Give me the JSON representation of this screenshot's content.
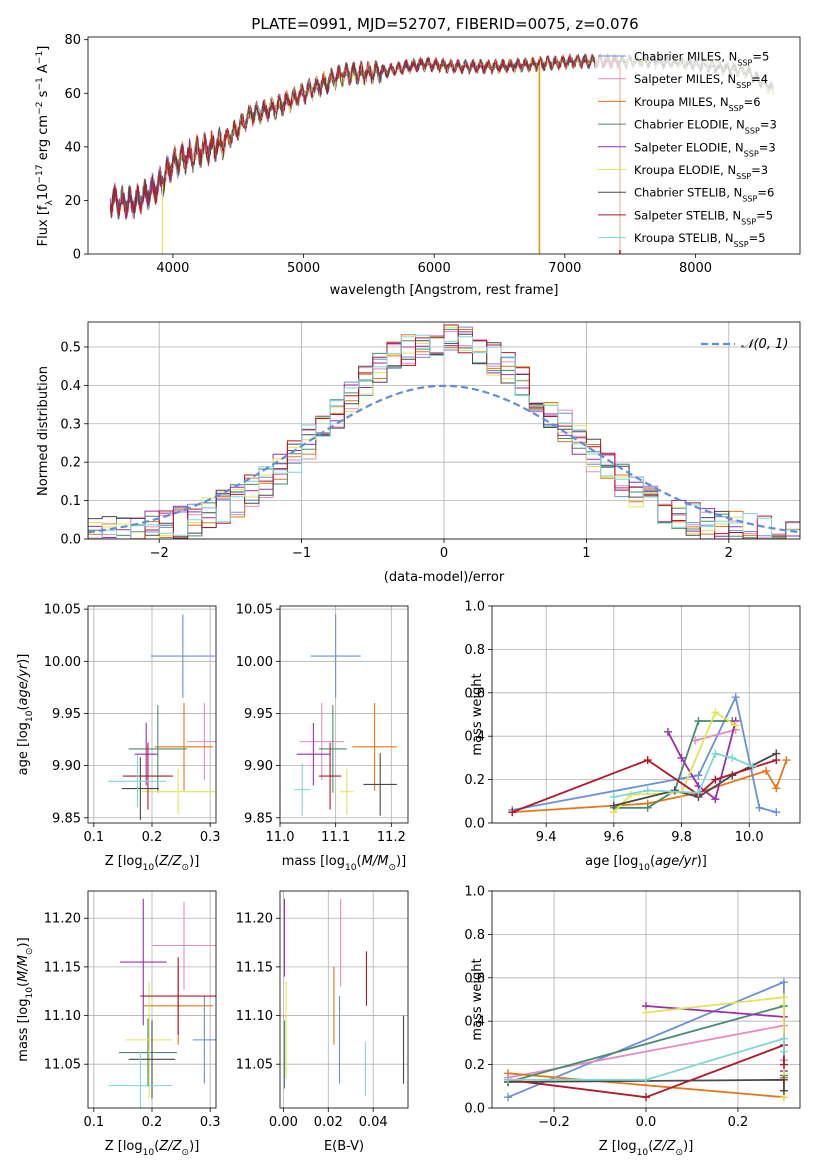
{
  "colors": [
    "#6a8fdb",
    "#e78ac3",
    "#e6761c",
    "#4a8a6e",
    "#9b2fae",
    "#e3e35a",
    "#484848",
    "#b2182b",
    "#7fd6d6"
  ],
  "series_names": [
    "Chabrier MILES",
    "Salpeter MILES",
    "Kroupa MILES",
    "Chabrier ELODIE",
    "Salpeter ELODIE",
    "Kroupa ELODIE",
    "Chabrier STELIB",
    "Salpeter STELIB",
    "Kroupa STELIB"
  ],
  "chart_data": [
    {
      "id": "spectrum",
      "type": "line",
      "title": "PLATE=0991, MJD=52707, FIBERID=0075, z=0.076",
      "xlabel": "wavelength [Angstrom, rest frame]",
      "ylabel": "Flux [f_λ 10^-17 erg cm^-2 s^-1 A^-1]",
      "xlim": [
        3350,
        8800
      ],
      "ylim": [
        0,
        81
      ],
      "xticks": [
        "4000",
        "5000",
        "6000",
        "7000",
        "8000"
      ],
      "yticks": [
        "0",
        "20",
        "40",
        "60",
        "80"
      ],
      "grid": false,
      "legend_position": "top-right",
      "legend": [
        "Chabrier MILES, N_SSP=5",
        "Salpeter MILES, N_SSP=4",
        "Kroupa MILES, N_SSP=6",
        "Chabrier ELODIE, N_SSP=3",
        "Salpeter ELODIE, N_SSP=3",
        "Kroupa ELODIE, N_SSP=3",
        "Chabrier STELIB, N_SSP=6",
        "Salpeter STELIB, N_SSP=5",
        "Kroupa STELIB, N_SSP=5"
      ],
      "continuum": [
        [
          3520,
          20
        ],
        [
          3700,
          19
        ],
        [
          3900,
          26
        ],
        [
          4000,
          34
        ],
        [
          4200,
          38
        ],
        [
          4400,
          42
        ],
        [
          4600,
          52
        ],
        [
          4800,
          55
        ],
        [
          5000,
          60
        ],
        [
          5300,
          67
        ],
        [
          5600,
          68
        ],
        [
          5900,
          71
        ],
        [
          6200,
          70
        ],
        [
          6500,
          70
        ],
        [
          6800,
          71
        ],
        [
          7100,
          72
        ],
        [
          7400,
          72
        ],
        [
          7700,
          72
        ],
        [
          8000,
          71
        ],
        [
          8400,
          68
        ],
        [
          8600,
          61
        ]
      ],
      "ranges": [
        [
          3520,
          8600
        ],
        [
          3520,
          7420
        ],
        [
          3520,
          7420
        ],
        [
          3520,
          8600
        ],
        [
          3520,
          8600
        ],
        [
          3920,
          8600
        ],
        [
          3520,
          8600
        ],
        [
          3520,
          7420
        ],
        [
          3520,
          8600
        ]
      ],
      "dropouts": [
        6800,
        7420,
        3920
      ]
    },
    {
      "id": "residuals",
      "type": "line",
      "xlabel": "(data-model)/error",
      "ylabel": "Normed distribution",
      "xlim": [
        -2.5,
        2.5
      ],
      "ylim": [
        0,
        0.565
      ],
      "xticks": [
        "-2",
        "-1",
        "0",
        "1",
        "2"
      ],
      "yticks": [
        "0.0",
        "0.1",
        "0.2",
        "0.3",
        "0.4",
        "0.5"
      ],
      "grid": true,
      "legend_position": "top-right",
      "legend": [
        "𝒩(0, 1)"
      ]
    },
    {
      "id": "z-age",
      "type": "scatter",
      "xlabel": "Z [log10(Z/Z⊙)]",
      "ylabel": "age [log10(age/yr)]",
      "xlim": [
        0.09,
        0.31
      ],
      "ylim": [
        9.845,
        10.053
      ],
      "xticks": [
        "0.1",
        "0.2",
        "0.3"
      ],
      "yticks": [
        "9.85",
        "9.90",
        "9.95",
        "10.00",
        "10.05"
      ],
      "grid": true,
      "points": [
        [
          0.253,
          10.005
        ],
        [
          0.29,
          9.923
        ],
        [
          0.255,
          9.918
        ],
        [
          0.21,
          9.916
        ],
        [
          0.19,
          9.911
        ],
        [
          0.245,
          9.875
        ],
        [
          0.18,
          9.878
        ],
        [
          0.193,
          9.89
        ],
        [
          0.175,
          9.885
        ]
      ]
    },
    {
      "id": "mass-age",
      "type": "scatter",
      "xlabel": "mass [log10(M/M⊙)]",
      "ylabel": "",
      "xlim": [
        11.0,
        11.23
      ],
      "ylim": [
        9.845,
        10.053
      ],
      "xticks": [
        "11.0",
        "11.1",
        "11.2"
      ],
      "yticks": [
        "9.85",
        "9.90",
        "9.95",
        "10.00",
        "10.05"
      ],
      "grid": true,
      "points": [
        [
          11.1,
          10.005
        ],
        [
          11.075,
          9.923
        ],
        [
          11.17,
          9.918
        ],
        [
          11.095,
          9.916
        ],
        [
          11.06,
          9.911
        ],
        [
          11.12,
          9.875
        ],
        [
          11.18,
          9.882
        ],
        [
          11.09,
          9.89
        ],
        [
          11.04,
          9.877
        ]
      ]
    },
    {
      "id": "age-weight",
      "type": "line",
      "xlabel": "age [log10(age/yr)]",
      "ylabel": "mass weight",
      "xlim": [
        9.24,
        10.15
      ],
      "ylim": [
        0,
        1.0
      ],
      "xticks": [
        "9.4",
        "9.6",
        "9.8",
        "10.0"
      ],
      "yticks": [
        "0.0",
        "0.2",
        "0.4",
        "0.6",
        "0.8",
        "1.0"
      ],
      "grid": true,
      "series": [
        {
          "x": [
            9.3,
            9.85,
            9.96,
            10.03,
            10.08
          ],
          "y": [
            0.06,
            0.22,
            0.58,
            0.07,
            0.05
          ]
        },
        {
          "x": [
            9.84,
            9.96
          ],
          "y": [
            0.38,
            0.43
          ]
        },
        {
          "x": [
            9.3,
            9.7,
            9.85,
            10.05,
            10.08,
            10.11
          ],
          "y": [
            0.05,
            0.09,
            0.14,
            0.24,
            0.16,
            0.29
          ]
        },
        {
          "x": [
            9.6,
            9.7,
            9.78,
            9.85,
            9.95
          ],
          "y": [
            0.07,
            0.07,
            0.15,
            0.47,
            0.47
          ]
        },
        {
          "x": [
            9.76,
            9.8,
            9.85,
            9.9,
            9.96
          ],
          "y": [
            0.42,
            0.3,
            0.17,
            0.11,
            0.47
          ]
        },
        {
          "x": [
            9.6,
            9.65,
            9.8,
            9.9,
            9.96
          ],
          "y": [
            0.05,
            0.13,
            0.14,
            0.51,
            0.45
          ]
        },
        {
          "x": [
            9.6,
            9.78,
            9.85,
            9.95,
            10.08
          ],
          "y": [
            0.08,
            0.15,
            0.12,
            0.22,
            0.32
          ]
        },
        {
          "x": [
            9.3,
            9.7,
            9.85,
            9.9,
            10.08
          ],
          "y": [
            0.05,
            0.29,
            0.13,
            0.2,
            0.29
          ]
        },
        {
          "x": [
            9.6,
            9.7,
            9.85,
            9.9,
            9.95,
            10.01
          ],
          "y": [
            0.12,
            0.15,
            0.14,
            0.32,
            0.3,
            0.26
          ]
        }
      ]
    },
    {
      "id": "z-mass",
      "type": "scatter",
      "xlabel": "Z [log10(Z/Z⊙)]",
      "ylabel": "mass [log10(M/M⊙)]",
      "xlim": [
        0.09,
        0.31
      ],
      "ylim": [
        11.005,
        11.228
      ],
      "xticks": [
        "0.1",
        "0.2",
        "0.3"
      ],
      "yticks": [
        "11.05",
        "11.10",
        "11.15",
        "11.20"
      ],
      "grid": true,
      "points": [
        [
          0.29,
          11.075
        ],
        [
          0.255,
          11.172
        ],
        [
          0.245,
          11.11
        ],
        [
          0.193,
          11.062
        ],
        [
          0.185,
          11.155
        ],
        [
          0.195,
          11.075
        ],
        [
          0.2,
          11.055
        ],
        [
          0.245,
          11.12
        ],
        [
          0.18,
          11.028
        ]
      ]
    },
    {
      "id": "ebv-mass",
      "type": "scatter",
      "xlabel": "E(B-V)",
      "ylabel": "",
      "xlim": [
        -0.0015,
        0.0555
      ],
      "ylim": [
        11.005,
        11.228
      ],
      "xticks": [
        "0.00",
        "0.02",
        "0.04"
      ],
      "yticks": [
        "11.05",
        "11.10",
        "11.15",
        "11.20"
      ],
      "grid": true,
      "points": [
        [
          0.025,
          11.075
        ],
        [
          0.0255,
          11.175
        ],
        [
          0.0225,
          11.11
        ],
        [
          0.0005,
          11.06
        ],
        [
          0.0005,
          11.18
        ],
        [
          0.0012,
          11.085
        ],
        [
          0.0535,
          11.065
        ],
        [
          0.037,
          11.138
        ],
        [
          0.0365,
          11.045
        ]
      ]
    },
    {
      "id": "z-weight",
      "type": "line",
      "xlabel": "Z [log10(Z/Z⊙)]",
      "ylabel": "mass weight",
      "xlim": [
        -0.335,
        0.335
      ],
      "ylim": [
        0,
        1.0
      ],
      "xticks": [
        "-0.2",
        "0.0",
        "0.2"
      ],
      "yticks": [
        "0.0",
        "0.2",
        "0.4",
        "0.6",
        "0.8",
        "1.0"
      ],
      "grid": true,
      "series": [
        {
          "x": [
            -0.3,
            0.3,
            0.3
          ],
          "y": [
            0.05,
            0.58,
            0.22
          ]
        },
        {
          "x": [
            -0.3,
            0.3,
            0.3
          ],
          "y": [
            0.14,
            0.38,
            0.22
          ]
        },
        {
          "x": [
            -0.3,
            0.3,
            0.3
          ],
          "y": [
            0.16,
            0.05,
            0.14
          ]
        },
        {
          "x": [
            -0.3,
            0.3,
            0.3
          ],
          "y": [
            0.12,
            0.47,
            0.15
          ]
        },
        {
          "x": [
            0.0,
            0.3,
            0.3
          ],
          "y": [
            0.47,
            0.42,
            0.17
          ]
        },
        {
          "x": [
            0.0,
            0.3,
            0.3
          ],
          "y": [
            0.44,
            0.51,
            0.05
          ]
        },
        {
          "x": [
            -0.3,
            0.3,
            0.3
          ],
          "y": [
            0.12,
            0.13,
            0.08
          ]
        },
        {
          "x": [
            -0.3,
            0.0,
            0.3,
            0.3
          ],
          "y": [
            0.13,
            0.05,
            0.29,
            0.2
          ]
        },
        {
          "x": [
            -0.3,
            0.0,
            0.3,
            0.3
          ],
          "y": [
            0.13,
            0.13,
            0.32,
            0.26
          ]
        }
      ]
    }
  ]
}
